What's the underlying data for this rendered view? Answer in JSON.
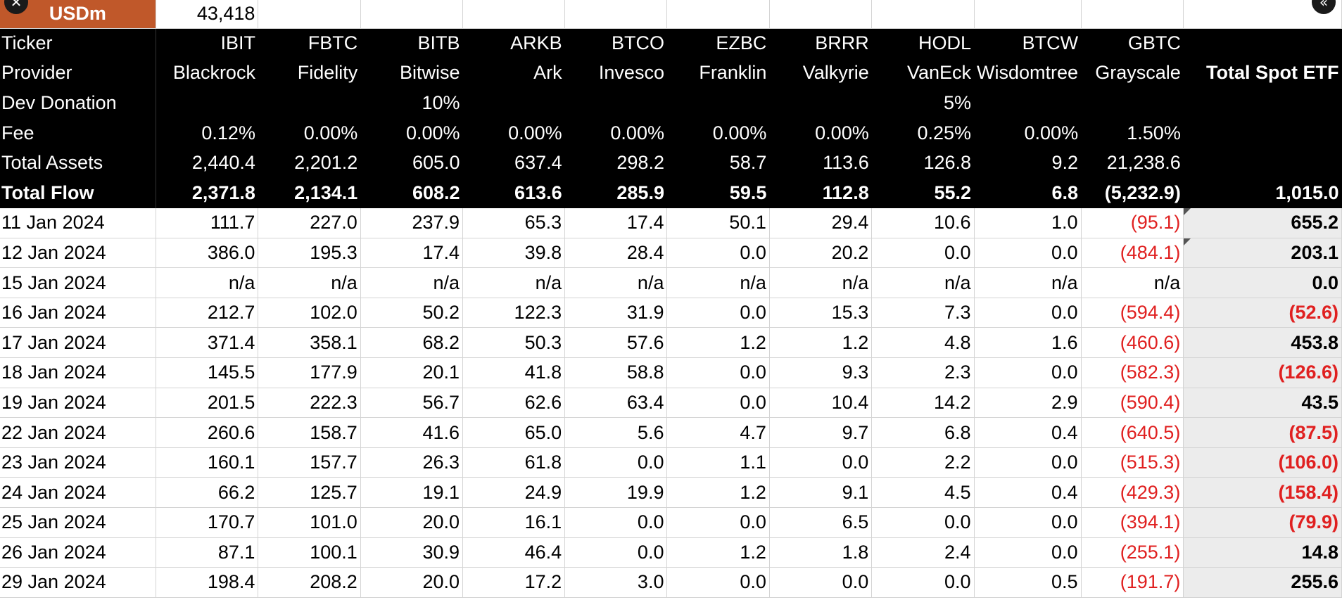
{
  "topbar": {
    "label": "USDm",
    "value": "43,418"
  },
  "header": {
    "ticker_label": "Ticker",
    "provider_label": "Provider",
    "donation_label": "Dev Donation",
    "fee_label": "Fee",
    "assets_label": "Total Assets",
    "flow_label": "Total Flow",
    "total_label": "Total Spot ETF",
    "tickers": [
      "IBIT",
      "FBTC",
      "BITB",
      "ARKB",
      "BTCO",
      "EZBC",
      "BRRR",
      "HODL",
      "BTCW",
      "GBTC"
    ],
    "providers": [
      "Blackrock",
      "Fidelity",
      "Bitwise",
      "Ark",
      "Invesco",
      "Franklin",
      "Valkyrie",
      "VanEck",
      "Wisdomtree",
      "Grayscale"
    ],
    "donations": [
      "",
      "",
      "10%",
      "",
      "",
      "",
      "",
      "5%",
      "",
      ""
    ],
    "fees": [
      "0.12%",
      "0.00%",
      "0.00%",
      "0.00%",
      "0.00%",
      "0.00%",
      "0.00%",
      "0.25%",
      "0.00%",
      "1.50%"
    ],
    "assets": [
      "2,440.4",
      "2,201.2",
      "605.0",
      "637.4",
      "298.2",
      "58.7",
      "113.6",
      "126.8",
      "9.2",
      "21,238.6"
    ],
    "flows": [
      "2,371.8",
      "2,134.1",
      "608.2",
      "613.6",
      "285.9",
      "59.5",
      "112.8",
      "55.2",
      "6.8",
      "(5,232.9)"
    ],
    "total_flow": "1,015.0"
  },
  "rows": [
    {
      "date": "11 Jan 2024",
      "v": [
        "111.7",
        "227.0",
        "237.9",
        "65.3",
        "17.4",
        "50.1",
        "29.4",
        "10.6",
        "1.0",
        "(95.1)"
      ],
      "total": "655.2"
    },
    {
      "date": "12 Jan 2024",
      "v": [
        "386.0",
        "195.3",
        "17.4",
        "39.8",
        "28.4",
        "0.0",
        "20.2",
        "0.0",
        "0.0",
        "(484.1)"
      ],
      "total": "203.1"
    },
    {
      "date": "15 Jan 2024",
      "v": [
        "n/a",
        "n/a",
        "n/a",
        "n/a",
        "n/a",
        "n/a",
        "n/a",
        "n/a",
        "n/a",
        "n/a"
      ],
      "total": "0.0"
    },
    {
      "date": "16 Jan 2024",
      "v": [
        "212.7",
        "102.0",
        "50.2",
        "122.3",
        "31.9",
        "0.0",
        "15.3",
        "7.3",
        "0.0",
        "(594.4)"
      ],
      "total": "(52.6)"
    },
    {
      "date": "17 Jan 2024",
      "v": [
        "371.4",
        "358.1",
        "68.2",
        "50.3",
        "57.6",
        "1.2",
        "1.2",
        "4.8",
        "1.6",
        "(460.6)"
      ],
      "total": "453.8"
    },
    {
      "date": "18 Jan 2024",
      "v": [
        "145.5",
        "177.9",
        "20.1",
        "41.8",
        "58.8",
        "0.0",
        "9.3",
        "2.3",
        "0.0",
        "(582.3)"
      ],
      "total": "(126.6)"
    },
    {
      "date": "19 Jan 2024",
      "v": [
        "201.5",
        "222.3",
        "56.7",
        "62.6",
        "63.4",
        "0.0",
        "10.4",
        "14.2",
        "2.9",
        "(590.4)"
      ],
      "total": "43.5"
    },
    {
      "date": "22 Jan 2024",
      "v": [
        "260.6",
        "158.7",
        "41.6",
        "65.0",
        "5.6",
        "4.7",
        "9.7",
        "6.8",
        "0.4",
        "(640.5)"
      ],
      "total": "(87.5)"
    },
    {
      "date": "23 Jan 2024",
      "v": [
        "160.1",
        "157.7",
        "26.3",
        "61.8",
        "0.0",
        "1.1",
        "0.0",
        "2.2",
        "0.0",
        "(515.3)"
      ],
      "total": "(106.0)"
    },
    {
      "date": "24 Jan 2024",
      "v": [
        "66.2",
        "125.7",
        "19.1",
        "24.9",
        "19.9",
        "1.2",
        "9.1",
        "4.5",
        "0.4",
        "(429.3)"
      ],
      "total": "(158.4)"
    },
    {
      "date": "25 Jan 2024",
      "v": [
        "170.7",
        "101.0",
        "20.0",
        "16.1",
        "0.0",
        "0.0",
        "6.5",
        "0.0",
        "0.0",
        "(394.1)"
      ],
      "total": "(79.9)"
    },
    {
      "date": "26 Jan 2024",
      "v": [
        "87.1",
        "100.1",
        "30.9",
        "46.4",
        "0.0",
        "1.2",
        "1.8",
        "2.4",
        "0.0",
        "(255.1)"
      ],
      "total": "14.8"
    },
    {
      "date": "29 Jan 2024",
      "v": [
        "198.4",
        "208.2",
        "20.0",
        "17.2",
        "3.0",
        "0.0",
        "0.0",
        "0.0",
        "0.5",
        "(191.7)"
      ],
      "total": "255.6"
    }
  ],
  "colors": {
    "header_bg": "#000000",
    "usd_bg": "#c0582a",
    "negative": "#e02020",
    "total_bg": "#ececec"
  },
  "icons": {
    "close": "close-icon",
    "collapse": "double-chevron-left-icon"
  }
}
